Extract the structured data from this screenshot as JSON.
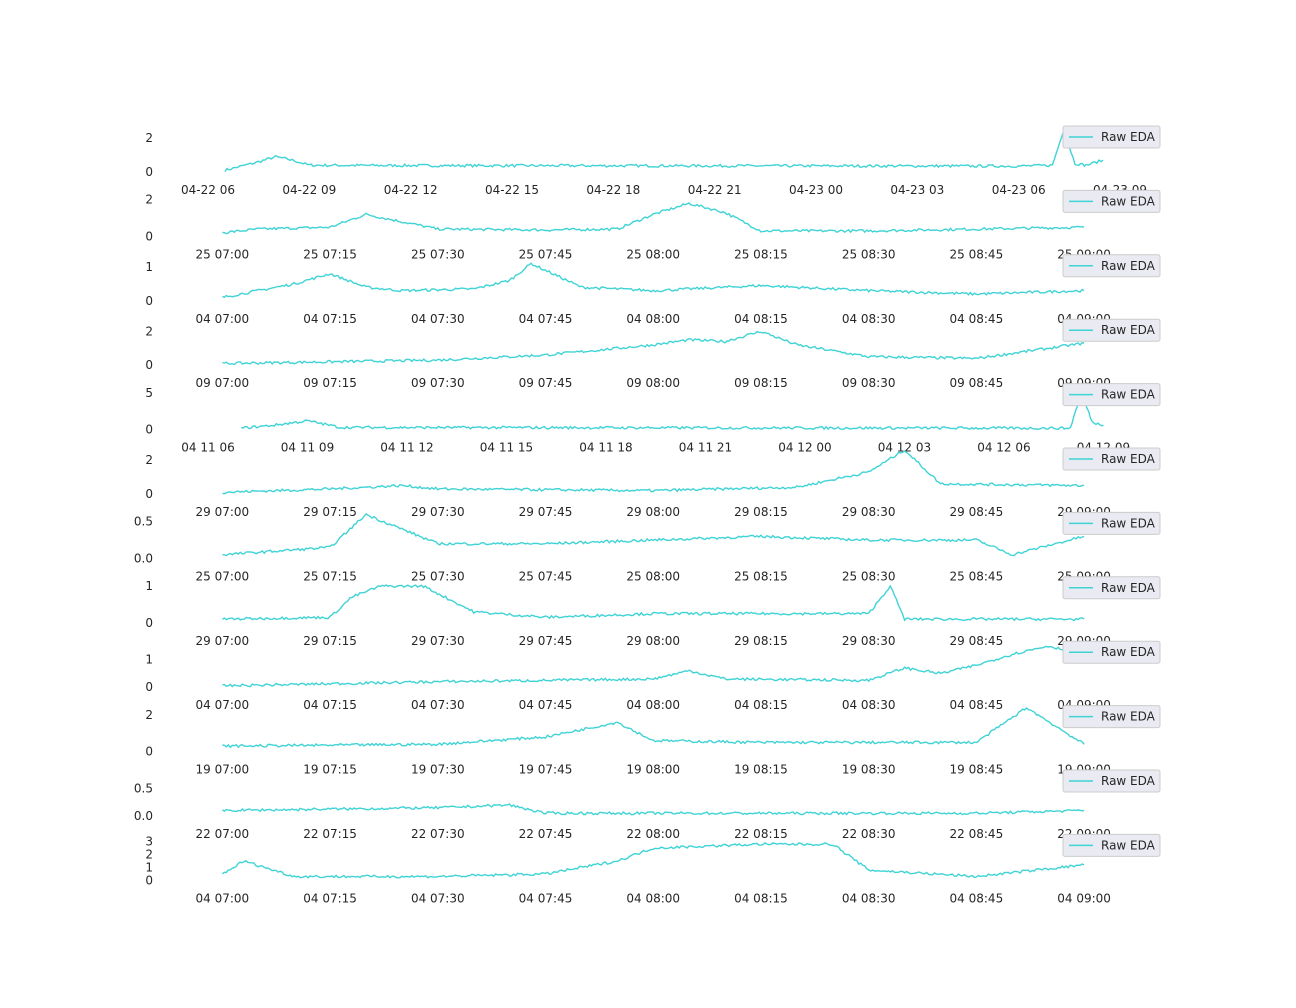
{
  "colors": {
    "line": "#40d3d5",
    "legend_bg": "#eaeaf2",
    "text": "#262626"
  },
  "chart_data": [
    {
      "type": "line",
      "x_type": "time",
      "xlim": [
        "2019-04-22 06:00",
        "2019-04-23 09:00"
      ],
      "xticks": [
        "04-22 06",
        "04-22 09",
        "04-22 12",
        "04-22 15",
        "04-22 18",
        "04-22 21",
        "04-23 00",
        "04-23 03",
        "04-23 06",
        "04-23 09"
      ],
      "yticks": [
        "0",
        "2"
      ],
      "ylim": [
        0,
        2.6
      ],
      "legend": "Raw EDA",
      "legend_position": "right",
      "series": [
        {
          "name": "Raw EDA",
          "x": [
            "2019-04-22 06:30",
            "2019-04-22 07:00",
            "2019-04-22 07:30",
            "2019-04-22 08:00",
            "2019-04-22 08:30",
            "2019-04-22 09:00",
            "2019-04-22 12:00",
            "2019-04-23 00:00",
            "2019-04-23 06:00",
            "2019-04-23 07:00",
            "2019-04-23 07:20",
            "2019-04-23 07:40",
            "2019-04-23 08:00",
            "2019-04-23 08:30"
          ],
          "y": [
            0.1,
            0.35,
            0.6,
            0.9,
            0.7,
            0.4,
            0.38,
            0.36,
            0.35,
            0.4,
            2.5,
            0.5,
            0.4,
            0.7
          ]
        }
      ]
    },
    {
      "type": "line",
      "x_type": "time",
      "xlim": [
        "2019-02-25 06:58",
        "2019-02-25 09:05"
      ],
      "xticks": [
        "25 07:00",
        "25 07:15",
        "25 07:30",
        "25 07:45",
        "25 08:00",
        "25 08:15",
        "25 08:30",
        "25 08:45",
        "25 09:00"
      ],
      "yticks": [
        "0",
        "2"
      ],
      "ylim": [
        0,
        2.4
      ],
      "legend": "Raw EDA",
      "legend_position": "right",
      "series": [
        {
          "name": "Raw EDA",
          "x": [
            "2019-02-25 07:00",
            "2019-02-25 07:05",
            "2019-02-25 07:15",
            "2019-02-25 07:20",
            "2019-02-25 07:30",
            "2019-02-25 07:45",
            "2019-02-25 07:55",
            "2019-02-25 08:00",
            "2019-02-25 08:05",
            "2019-02-25 08:10",
            "2019-02-25 08:15",
            "2019-02-25 08:30",
            "2019-02-25 08:45",
            "2019-02-25 09:00"
          ],
          "y": [
            0.2,
            0.4,
            0.5,
            1.2,
            0.4,
            0.35,
            0.4,
            1.2,
            1.8,
            1.3,
            0.3,
            0.3,
            0.4,
            0.5
          ]
        }
      ]
    },
    {
      "type": "line",
      "x_type": "time",
      "xlim": [
        "2019-03-04 06:58",
        "2019-03-04 09:05"
      ],
      "xticks": [
        "04 07:00",
        "04 07:15",
        "04 07:30",
        "04 07:45",
        "04 08:00",
        "04 08:15",
        "04 08:30",
        "04 08:45",
        "04 09:00"
      ],
      "yticks": [
        "0",
        "1"
      ],
      "ylim": [
        0,
        1.3
      ],
      "legend": "Raw EDA",
      "legend_position": "right",
      "series": [
        {
          "name": "Raw EDA",
          "x": [
            "2019-03-04 07:00",
            "2019-03-04 07:05",
            "2019-03-04 07:10",
            "2019-03-04 07:15",
            "2019-03-04 07:20",
            "2019-03-04 07:25",
            "2019-03-04 07:35",
            "2019-03-04 07:40",
            "2019-03-04 07:43",
            "2019-03-04 07:50",
            "2019-03-04 08:00",
            "2019-03-04 08:15",
            "2019-03-04 08:30",
            "2019-03-04 08:45",
            "2019-03-04 09:00"
          ],
          "y": [
            0.1,
            0.3,
            0.5,
            0.8,
            0.4,
            0.3,
            0.35,
            0.6,
            1.1,
            0.4,
            0.3,
            0.45,
            0.3,
            0.2,
            0.3
          ]
        }
      ]
    },
    {
      "type": "line",
      "x_type": "time",
      "xlim": [
        "2019-04-09 06:58",
        "2019-04-09 09:05"
      ],
      "xticks": [
        "09 07:00",
        "09 07:15",
        "09 07:30",
        "09 07:45",
        "09 08:00",
        "09 08:15",
        "09 08:30",
        "09 08:45",
        "09 09:00"
      ],
      "yticks": [
        "0",
        "2"
      ],
      "ylim": [
        0,
        2.6
      ],
      "legend": "Raw EDA",
      "legend_position": "right",
      "series": [
        {
          "name": "Raw EDA",
          "x": [
            "2019-04-09 07:00",
            "2019-04-09 07:30",
            "2019-04-09 07:45",
            "2019-04-09 08:00",
            "2019-04-09 08:05",
            "2019-04-09 08:10",
            "2019-04-09 08:15",
            "2019-04-09 08:20",
            "2019-04-09 08:30",
            "2019-04-09 08:45",
            "2019-04-09 09:00"
          ],
          "y": [
            0.1,
            0.3,
            0.6,
            1.2,
            1.5,
            1.4,
            2.0,
            1.2,
            0.5,
            0.4,
            1.3
          ]
        }
      ]
    },
    {
      "type": "line",
      "x_type": "time",
      "xlim": [
        "2019-04-11 06:00",
        "2019-04-12 09:30"
      ],
      "xticks": [
        "04 11 06",
        "04 11 09",
        "04 11 12",
        "04 11 15",
        "04 11 18",
        "04 11 21",
        "04 12 00",
        "04 12 03",
        "04 12 06",
        "04 12 09"
      ],
      "yticks": [
        "0",
        "5"
      ],
      "ylim": [
        0,
        6.0
      ],
      "legend": "Raw EDA",
      "legend_position": "right",
      "series": [
        {
          "name": "Raw EDA",
          "x": [
            "2019-04-11 07:00",
            "2019-04-11 08:00",
            "2019-04-11 09:00",
            "2019-04-11 10:00",
            "2019-04-12 06:00",
            "2019-04-12 08:00",
            "2019-04-12 08:20",
            "2019-04-12 08:40",
            "2019-04-12 09:00"
          ],
          "y": [
            0.2,
            0.6,
            1.2,
            0.3,
            0.2,
            0.2,
            5.0,
            1.0,
            0.6
          ]
        }
      ]
    },
    {
      "type": "line",
      "x_type": "time",
      "xlim": [
        "2019-04-29 06:58",
        "2019-04-29 09:05"
      ],
      "xticks": [
        "29 07:00",
        "29 07:15",
        "29 07:30",
        "29 07:45",
        "29 08:00",
        "29 08:15",
        "29 08:30",
        "29 08:45",
        "29 09:00"
      ],
      "yticks": [
        "0",
        "2"
      ],
      "ylim": [
        0,
        2.6
      ],
      "legend": "Raw EDA",
      "legend_position": "right",
      "series": [
        {
          "name": "Raw EDA",
          "x": [
            "2019-04-29 07:00",
            "2019-04-29 07:15",
            "2019-04-29 07:25",
            "2019-04-29 07:30",
            "2019-04-29 07:45",
            "2019-04-29 08:00",
            "2019-04-29 08:20",
            "2019-04-29 08:30",
            "2019-04-29 08:35",
            "2019-04-29 08:40",
            "2019-04-29 09:00"
          ],
          "y": [
            0.1,
            0.3,
            0.5,
            0.3,
            0.25,
            0.2,
            0.4,
            1.3,
            2.6,
            0.6,
            0.5
          ]
        }
      ]
    },
    {
      "type": "line",
      "x_type": "time",
      "xlim": [
        "2019-04-25 06:58",
        "2019-04-25 09:05"
      ],
      "xticks": [
        "25 07:00",
        "25 07:15",
        "25 07:30",
        "25 07:45",
        "25 08:00",
        "25 08:15",
        "25 08:30",
        "25 08:45",
        "25 09:00"
      ],
      "yticks": [
        "0.0",
        "0.5"
      ],
      "ylim": [
        0,
        0.6
      ],
      "legend": "Raw EDA",
      "legend_position": "right",
      "series": [
        {
          "name": "Raw EDA",
          "x": [
            "2019-04-25 07:00",
            "2019-04-25 07:15",
            "2019-04-25 07:20",
            "2019-04-25 07:30",
            "2019-04-25 07:45",
            "2019-04-25 08:00",
            "2019-04-25 08:15",
            "2019-04-25 08:30",
            "2019-04-25 08:45",
            "2019-04-25 08:50",
            "2019-04-25 09:00"
          ],
          "y": [
            0.05,
            0.15,
            0.6,
            0.2,
            0.2,
            0.25,
            0.3,
            0.25,
            0.25,
            0.05,
            0.3
          ]
        }
      ]
    },
    {
      "type": "line",
      "x_type": "time",
      "xlim": [
        "2019-04-29 06:58",
        "2019-04-29 09:05"
      ],
      "xticks": [
        "29 07:00",
        "29 07:15",
        "29 07:30",
        "29 07:45",
        "29 08:00",
        "29 08:15",
        "29 08:30",
        "29 08:45",
        "29 09:00"
      ],
      "yticks": [
        "0",
        "1"
      ],
      "ylim": [
        0,
        1.2
      ],
      "legend": "Raw EDA",
      "legend_position": "right",
      "series": [
        {
          "name": "Raw EDA",
          "x": [
            "2019-04-29 07:00",
            "2019-04-29 07:15",
            "2019-04-29 07:18",
            "2019-04-29 07:22",
            "2019-04-29 07:28",
            "2019-04-29 07:35",
            "2019-04-29 07:45",
            "2019-04-29 08:00",
            "2019-04-29 08:30",
            "2019-04-29 08:33",
            "2019-04-29 08:35",
            "2019-04-29 09:00"
          ],
          "y": [
            0.1,
            0.15,
            0.7,
            1.0,
            1.0,
            0.3,
            0.15,
            0.25,
            0.25,
            1.0,
            0.1,
            0.1
          ]
        }
      ]
    },
    {
      "type": "line",
      "x_type": "time",
      "xlim": [
        "2019-04-04 06:58",
        "2019-04-04 09:05"
      ],
      "xticks": [
        "04 07:00",
        "04 07:15",
        "04 07:30",
        "04 07:45",
        "04 08:00",
        "04 08:15",
        "04 08:30",
        "04 08:45",
        "04 09:00"
      ],
      "yticks": [
        "0",
        "1"
      ],
      "ylim": [
        0,
        1.6
      ],
      "legend": "Raw EDA",
      "legend_position": "right",
      "series": [
        {
          "name": "Raw EDA",
          "x": [
            "2019-04-04 07:00",
            "2019-04-04 07:30",
            "2019-04-04 08:00",
            "2019-04-04 08:05",
            "2019-04-04 08:10",
            "2019-04-04 08:30",
            "2019-04-04 08:35",
            "2019-04-04 08:40",
            "2019-04-04 08:45",
            "2019-04-04 08:50",
            "2019-04-04 08:55",
            "2019-04-04 09:00"
          ],
          "y": [
            0.05,
            0.2,
            0.3,
            0.6,
            0.3,
            0.25,
            0.7,
            0.5,
            0.8,
            1.2,
            1.5,
            1.2
          ]
        }
      ]
    },
    {
      "type": "line",
      "x_type": "time",
      "xlim": [
        "2019-04-19 06:58",
        "2019-04-19 09:05"
      ],
      "xticks": [
        "19 07:00",
        "19 07:15",
        "19 07:30",
        "19 07:45",
        "19 08:00",
        "19 08:15",
        "19 08:30",
        "19 08:45",
        "19 09:00"
      ],
      "yticks": [
        "0",
        "2"
      ],
      "ylim": [
        0,
        2.4
      ],
      "legend": "Raw EDA",
      "legend_position": "right",
      "series": [
        {
          "name": "Raw EDA",
          "x": [
            "2019-04-19 07:00",
            "2019-04-19 07:30",
            "2019-04-19 07:45",
            "2019-04-19 07:55",
            "2019-04-19 08:00",
            "2019-04-19 08:15",
            "2019-04-19 08:30",
            "2019-04-19 08:45",
            "2019-04-19 08:52",
            "2019-04-19 09:00"
          ],
          "y": [
            0.3,
            0.4,
            0.8,
            1.6,
            0.6,
            0.5,
            0.5,
            0.5,
            2.4,
            0.4
          ]
        }
      ]
    },
    {
      "type": "line",
      "x_type": "time",
      "xlim": [
        "2019-04-22 06:58",
        "2019-04-22 09:05"
      ],
      "xticks": [
        "22 07:00",
        "22 07:15",
        "22 07:30",
        "22 07:45",
        "22 08:00",
        "22 08:15",
        "22 08:30",
        "22 08:45",
        "22 09:00"
      ],
      "yticks": [
        "0.0",
        "0.5"
      ],
      "ylim": [
        0,
        0.8
      ],
      "legend": "Raw EDA",
      "legend_position": "right",
      "series": [
        {
          "name": "Raw EDA",
          "x": [
            "2019-04-22 07:00",
            "2019-04-22 07:30",
            "2019-04-22 07:40",
            "2019-04-22 07:45",
            "2019-04-22 07:50",
            "2019-04-22 08:00",
            "2019-04-22 08:30",
            "2019-04-22 08:45",
            "2019-04-22 09:00"
          ],
          "y": [
            0.1,
            0.15,
            0.2,
            0.05,
            0.05,
            0.05,
            0.05,
            0.05,
            0.1
          ]
        }
      ]
    },
    {
      "type": "line",
      "x_type": "time",
      "xlim": [
        "2019-04-04 06:58",
        "2019-04-04 09:05"
      ],
      "xticks": [
        "04 07:00",
        "04 07:15",
        "04 07:30",
        "04 07:45",
        "04 08:00",
        "04 08:15",
        "04 08:30",
        "04 08:45",
        "04 09:00"
      ],
      "yticks": [
        "0",
        "1",
        "2",
        "3"
      ],
      "ylim": [
        0,
        3.4
      ],
      "legend": "Raw EDA",
      "legend_position": "right",
      "series": [
        {
          "name": "Raw EDA",
          "x": [
            "2019-04-04 07:00",
            "2019-04-04 07:03",
            "2019-04-04 07:10",
            "2019-04-04 07:30",
            "2019-04-04 07:45",
            "2019-04-04 07:55",
            "2019-04-04 08:00",
            "2019-04-04 08:15",
            "2019-04-04 08:25",
            "2019-04-04 08:30",
            "2019-04-04 08:45",
            "2019-04-04 09:00"
          ],
          "y": [
            0.5,
            1.5,
            0.3,
            0.3,
            0.5,
            1.5,
            2.5,
            2.8,
            2.8,
            0.8,
            0.3,
            1.2
          ]
        }
      ]
    }
  ]
}
